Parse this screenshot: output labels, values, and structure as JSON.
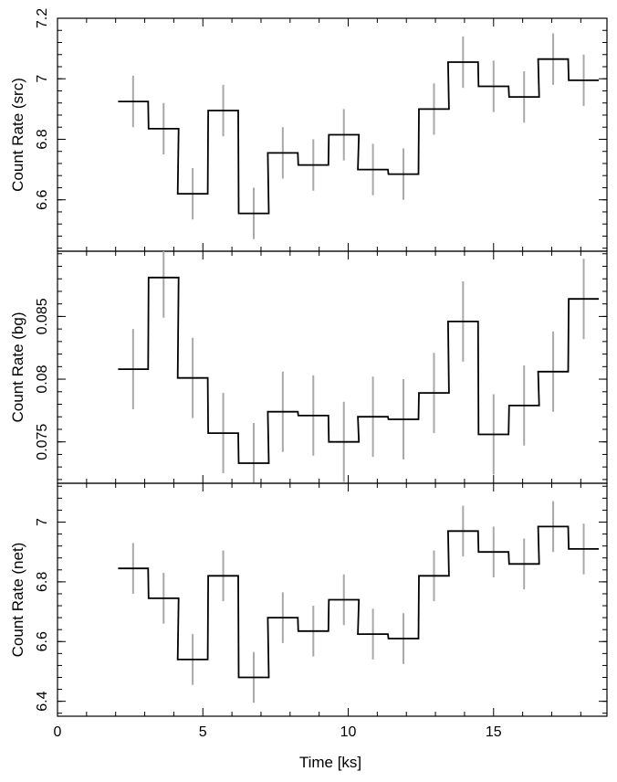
{
  "chart_data": {
    "type": "line",
    "xlabel": "Time [ks]",
    "xlim": [
      0,
      18.9
    ],
    "x_ticks": [
      0,
      5,
      10,
      15
    ],
    "colors": {
      "step": "#000000",
      "errorbar": "#a8a8a8"
    },
    "panels": [
      {
        "ylabel": "Count Rate (src)",
        "ylim": [
          6.43,
          7.2
        ],
        "y_ticks": [
          6.6,
          6.8,
          7,
          7.2
        ],
        "series": [
          {
            "x": [
              2.6,
              3.65,
              4.65,
              5.7,
              6.75,
              7.75,
              8.8,
              9.85,
              10.85,
              11.9,
              12.95,
              13.95,
              15.0,
              16.05,
              17.05,
              18.1
            ],
            "y": [
              6.925,
              6.835,
              6.62,
              6.895,
              6.555,
              6.755,
              6.715,
              6.815,
              6.7,
              6.685,
              6.9,
              7.055,
              6.975,
              6.94,
              7.065,
              6.995
            ],
            "err": [
              0.085,
              0.085,
              0.085,
              0.085,
              0.085,
              0.085,
              0.085,
              0.085,
              0.085,
              0.085,
              0.085,
              0.085,
              0.085,
              0.085,
              0.085,
              0.085
            ]
          }
        ]
      },
      {
        "ylabel": "Count Rate (bg)",
        "ylim": [
          0.0717,
          0.0902
        ],
        "y_ticks": [
          0.075,
          0.08,
          0.085
        ],
        "series": [
          {
            "x": [
              2.6,
              3.65,
              4.65,
              5.7,
              6.75,
              7.75,
              8.8,
              9.85,
              10.85,
              11.9,
              12.95,
              13.95,
              15.0,
              16.05,
              17.05,
              18.1
            ],
            "y": [
              0.0808,
              0.0881,
              0.0801,
              0.0757,
              0.0733,
              0.0774,
              0.0771,
              0.075,
              0.077,
              0.0768,
              0.0789,
              0.0846,
              0.0756,
              0.0779,
              0.0806,
              0.0864
            ],
            "err": [
              0.0032,
              0.0032,
              0.0032,
              0.0032,
              0.0032,
              0.0032,
              0.0032,
              0.0032,
              0.0032,
              0.0032,
              0.0032,
              0.0032,
              0.0032,
              0.0032,
              0.0032,
              0.0032
            ]
          }
        ]
      },
      {
        "ylabel": "Count Rate (net)",
        "ylim": [
          6.35,
          7.13
        ],
        "y_ticks": [
          6.4,
          6.6,
          6.8,
          7
        ],
        "series": [
          {
            "x": [
              2.6,
              3.65,
              4.65,
              5.7,
              6.75,
              7.75,
              8.8,
              9.85,
              10.85,
              11.9,
              12.95,
              13.95,
              15.0,
              16.05,
              17.05,
              18.1
            ],
            "y": [
              6.845,
              6.745,
              6.54,
              6.82,
              6.48,
              6.68,
              6.635,
              6.74,
              6.625,
              6.61,
              6.82,
              6.97,
              6.9,
              6.86,
              6.985,
              6.91
            ],
            "err": [
              0.085,
              0.085,
              0.085,
              0.085,
              0.085,
              0.085,
              0.085,
              0.085,
              0.085,
              0.085,
              0.085,
              0.085,
              0.085,
              0.085,
              0.085,
              0.085
            ]
          }
        ]
      }
    ]
  }
}
